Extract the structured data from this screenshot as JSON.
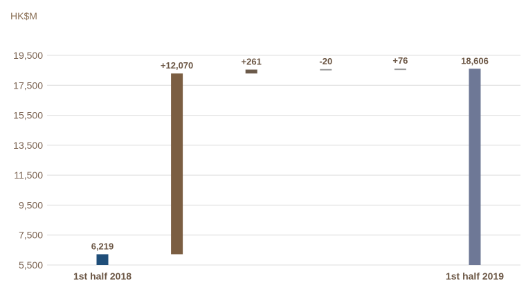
{
  "chart_data": {
    "type": "bar",
    "subtype": "waterfall",
    "unit_label": "HK$M",
    "y_ticks": [
      "19,500",
      "17,500",
      "15,500",
      "13,500",
      "11,500",
      "9,500",
      "7,500",
      "5,500"
    ],
    "y_tick_values": [
      19500,
      17500,
      15500,
      13500,
      11500,
      9500,
      7500,
      5500
    ],
    "ylim": [
      5500,
      19500
    ],
    "grid": true,
    "steps": [
      {
        "x_label": "1st half 2018",
        "kind": "total",
        "value": 6219,
        "label": "6,219",
        "color": "#1f4e79"
      },
      {
        "x_label": "",
        "kind": "delta",
        "value": 12070,
        "label": "+12,070",
        "color": "#7b5e42"
      },
      {
        "x_label": "",
        "kind": "delta",
        "value": 261,
        "label": "+261",
        "color": "#6b5a4a"
      },
      {
        "x_label": "",
        "kind": "delta",
        "value": -20,
        "label": "-20",
        "color": "#9a9a9a"
      },
      {
        "x_label": "",
        "kind": "delta",
        "value": 76,
        "label": "+76",
        "color": "#9a9a9a"
      },
      {
        "x_label": "1st half 2019",
        "kind": "total",
        "value": 18606,
        "label": "18,606",
        "color": "#6e7896"
      }
    ]
  }
}
